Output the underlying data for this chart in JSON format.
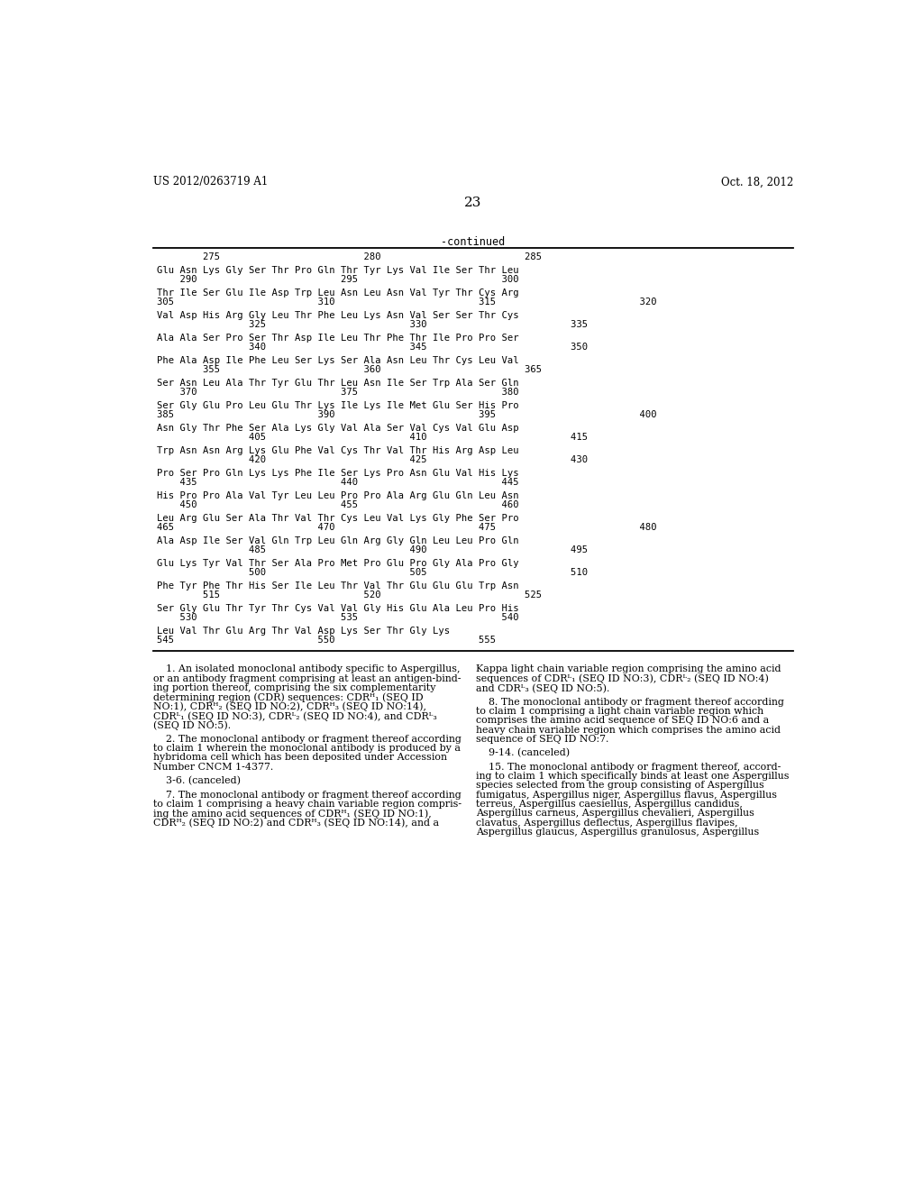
{
  "background_color": "#ffffff",
  "header_left": "US 2012/0263719 A1",
  "header_right": "Oct. 18, 2012",
  "page_number": "23",
  "continued_label": "-continued",
  "sequence_lines": [
    {
      "type": "ruler",
      "text": "        275                         280                         285"
    },
    {
      "type": "seq",
      "text": "Glu Asn Lys Gly Ser Thr Pro Gln Thr Tyr Lys Val Ile Ser Thr Leu"
    },
    {
      "type": "num",
      "text": "    290                         295                         300"
    },
    {
      "type": "seq",
      "text": "Thr Ile Ser Glu Ile Asp Trp Leu Asn Leu Asn Val Tyr Thr Cys Arg"
    },
    {
      "type": "num",
      "text": "305                         310                         315                         320"
    },
    {
      "type": "seq",
      "text": "Val Asp His Arg Gly Leu Thr Phe Leu Lys Asn Val Ser Ser Thr Cys"
    },
    {
      "type": "num",
      "text": "                325                         330                         335"
    },
    {
      "type": "seq",
      "text": "Ala Ala Ser Pro Ser Thr Asp Ile Leu Thr Phe Thr Ile Pro Pro Ser"
    },
    {
      "type": "num",
      "text": "                340                         345                         350"
    },
    {
      "type": "seq",
      "text": "Phe Ala Asp Ile Phe Leu Ser Lys Ser Ala Asn Leu Thr Cys Leu Val"
    },
    {
      "type": "num",
      "text": "        355                         360                         365"
    },
    {
      "type": "seq",
      "text": "Ser Asn Leu Ala Thr Tyr Glu Thr Leu Asn Ile Ser Trp Ala Ser Gln"
    },
    {
      "type": "num",
      "text": "    370                         375                         380"
    },
    {
      "type": "seq",
      "text": "Ser Gly Glu Pro Leu Glu Thr Lys Ile Lys Ile Met Glu Ser His Pro"
    },
    {
      "type": "num",
      "text": "385                         390                         395                         400"
    },
    {
      "type": "seq",
      "text": "Asn Gly Thr Phe Ser Ala Lys Gly Val Ala Ser Val Cys Val Glu Asp"
    },
    {
      "type": "num",
      "text": "                405                         410                         415"
    },
    {
      "type": "seq",
      "text": "Trp Asn Asn Arg Lys Glu Phe Val Cys Thr Val Thr His Arg Asp Leu"
    },
    {
      "type": "num",
      "text": "                420                         425                         430"
    },
    {
      "type": "seq",
      "text": "Pro Ser Pro Gln Lys Lys Phe Ile Ser Lys Pro Asn Glu Val His Lys"
    },
    {
      "type": "num",
      "text": "    435                         440                         445"
    },
    {
      "type": "seq",
      "text": "His Pro Pro Ala Val Tyr Leu Leu Pro Pro Ala Arg Glu Gln Leu Asn"
    },
    {
      "type": "num",
      "text": "    450                         455                         460"
    },
    {
      "type": "seq",
      "text": "Leu Arg Glu Ser Ala Thr Val Thr Cys Leu Val Lys Gly Phe Ser Pro"
    },
    {
      "type": "num",
      "text": "465                         470                         475                         480"
    },
    {
      "type": "seq",
      "text": "Ala Asp Ile Ser Val Gln Trp Leu Gln Arg Gly Gln Leu Leu Pro Gln"
    },
    {
      "type": "num",
      "text": "                485                         490                         495"
    },
    {
      "type": "seq",
      "text": "Glu Lys Tyr Val Thr Ser Ala Pro Met Pro Glu Pro Gly Ala Pro Gly"
    },
    {
      "type": "num",
      "text": "                500                         505                         510"
    },
    {
      "type": "seq",
      "text": "Phe Tyr Phe Thr His Ser Ile Leu Thr Val Thr Glu Glu Glu Trp Asn"
    },
    {
      "type": "num",
      "text": "        515                         520                         525"
    },
    {
      "type": "seq",
      "text": "Ser Gly Glu Thr Tyr Thr Cys Val Val Gly His Glu Ala Leu Pro His"
    },
    {
      "type": "num",
      "text": "    530                         535                         540"
    },
    {
      "type": "seq",
      "text": "Leu Val Thr Glu Arg Thr Val Asp Lys Ser Thr Gly Lys"
    },
    {
      "type": "num",
      "text": "545                         550                         555"
    }
  ],
  "claims_left": [
    "    1. An isolated monoclonal antibody specific to Aspergillus,",
    "or an antibody fragment comprising at least an antigen-bind-",
    "ing portion thereof, comprising the six complementarity",
    "determining region (CDR) sequences: CDRᴴ₁ (SEQ ID",
    "NO:1), CDRᴴ₂ (SEQ ID NO:2), CDRᴴ₃ (SEQ ID NO:14),",
    "CDRᴸ₁ (SEQ ID NO:3), CDRᴸ₂ (SEQ ID NO:4), and CDRᴸ₃",
    "(SEQ ID NO:5).",
    "",
    "    2. The monoclonal antibody or fragment thereof according",
    "to claim 1 wherein the monoclonal antibody is produced by a",
    "hybridoma cell which has been deposited under Accession",
    "Number CNCM 1-4377.",
    "",
    "    3-6. (canceled)",
    "",
    "    7. The monoclonal antibody or fragment thereof according",
    "to claim 1 comprising a heavy chain variable region compris-",
    "ing the amino acid sequences of CDRᴴ₁ (SEQ ID NO:1),",
    "CDRᴴ₂ (SEQ ID NO:2) and CDRᴴ₃ (SEQ ID NO:14), and a"
  ],
  "claims_right": [
    "Kappa light chain variable region comprising the amino acid",
    "sequences of CDRᴸ₁ (SEQ ID NO:3), CDRᴸ₂ (SEQ ID NO:4)",
    "and CDRᴸ₃ (SEQ ID NO:5).",
    "",
    "    8. The monoclonal antibody or fragment thereof according",
    "to claim 1 comprising a light chain variable region which",
    "comprises the amino acid sequence of SEQ ID NO:6 and a",
    "heavy chain variable region which comprises the amino acid",
    "sequence of SEQ ID NO:7.",
    "",
    "    9-14. (canceled)",
    "",
    "    15. The monoclonal antibody or fragment thereof, accord-",
    "ing to claim 1 which specifically binds at least one Aspergillus",
    "species selected from the group consisting of Aspergillus",
    "fumigatus, Aspergillus niger, Aspergillus flavus, Aspergillus",
    "terreus, Aspergillus caesiellus, Aspergillus candidus,",
    "Aspergillus carneus, Aspergillus chevalieri, Aspergillus",
    "clavatus, Aspergillus deflectus, Aspergillus flavipes,",
    "Aspergillus glaucus, Aspergillus granulosus, Aspergillus"
  ]
}
